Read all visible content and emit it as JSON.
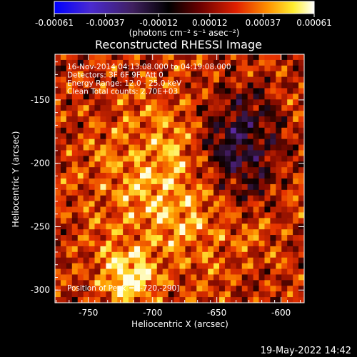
{
  "chart_data": {
    "type": "heatmap",
    "title": "Reconstructed RHESSI Image",
    "xlabel": "Heliocentric X (arcsec)",
    "ylabel": "Heliocentric Y (arcsec)",
    "xlim": [
      -776,
      -582
    ],
    "ylim": [
      -310,
      -114
    ],
    "x_ticks": [
      {
        "value": -750,
        "label": "-750"
      },
      {
        "value": -700,
        "label": "-700"
      },
      {
        "value": -650,
        "label": "-650"
      },
      {
        "value": -600,
        "label": "-600"
      }
    ],
    "y_ticks": [
      {
        "value": -150,
        "label": "-150"
      },
      {
        "value": -200,
        "label": "-200"
      },
      {
        "value": -250,
        "label": "-250"
      },
      {
        "value": -300,
        "label": "-300"
      }
    ],
    "colorbar": {
      "range": [
        -0.00061,
        0.00061
      ],
      "tick_labels": [
        "-0.00061",
        "-0.00037",
        "-0.00012",
        "0.00012",
        "0.00037",
        "0.00061"
      ],
      "tick_values": [
        -0.00061,
        -0.00037,
        -0.00012,
        0.00012,
        0.00037,
        0.00061
      ],
      "unit_label": "(photons cm⁻² s⁻¹ asec⁻²)",
      "colors": [
        "#0000ff",
        "#5a1fb0",
        "#3a1040",
        "#000000",
        "#800000",
        "#ff3000",
        "#ffa000",
        "#ffff40",
        "#ffffff"
      ]
    },
    "peak": {
      "x": -720,
      "y": -290
    },
    "annotations": [
      "16-Nov-2014 04:13:08.000 to 04:19:08.000",
      "Detectors: 3F 6F 9F, Att 0",
      "Energy Range: 12.0 - 25.0 keV",
      "Clean     Total counts: 2.70E+03"
    ],
    "peak_label": "Position of Peak = [-720,-290]",
    "grid": false
  },
  "footer": {
    "timestamp": "19-May-2022 14:42"
  }
}
